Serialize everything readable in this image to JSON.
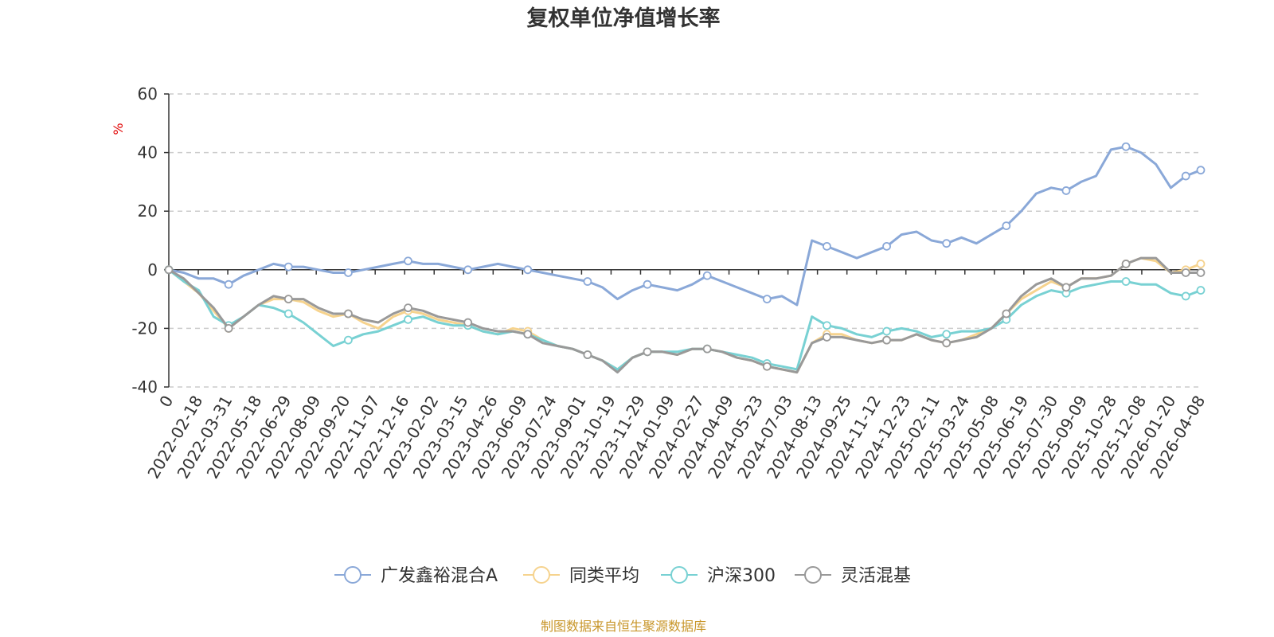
{
  "chart_data": {
    "type": "line",
    "title": "复权单位净值增长率",
    "ylabel": "%",
    "ylim": [
      -40,
      60
    ],
    "yticks": [
      60,
      40,
      20,
      0,
      -20,
      -40
    ],
    "grid": true,
    "legend_position": "bottom",
    "source": "制图数据来自恒生聚源数据库",
    "x_labels": [
      "0",
      "2022-02-18",
      "2022-03-31",
      "2022-05-18",
      "2022-06-29",
      "2022-08-09",
      "2022-09-20",
      "2022-11-07",
      "2022-12-16",
      "2023-02-02",
      "2023-03-15",
      "2023-04-26",
      "2023-06-09",
      "2023-07-24",
      "2023-09-01",
      "2023-10-19",
      "2023-11-29",
      "2024-01-09",
      "2024-02-27",
      "2024-04-09",
      "2024-05-23",
      "2024-07-03",
      "2024-08-13",
      "2024-09-25",
      "2024-11-12",
      "2024-12-23",
      "2025-02-11",
      "2025-03-24",
      "2025-05-08",
      "2025-06-19",
      "2025-07-30",
      "2025-09-09",
      "2025-10-28",
      "2025-12-08",
      "2026-01-20",
      "2026-04-08"
    ],
    "series": [
      {
        "name": "广发鑫裕混合A",
        "color": "#8aa8d8",
        "values": [
          0,
          -1,
          -3,
          -3,
          -5,
          -2,
          0,
          2,
          1,
          1,
          0,
          -1,
          -1,
          0,
          1,
          2,
          3,
          2,
          2,
          1,
          0,
          1,
          2,
          1,
          0,
          -1,
          -2,
          -3,
          -4,
          -6,
          -10,
          -7,
          -5,
          -6,
          -7,
          -5,
          -2,
          -4,
          -6,
          -8,
          -10,
          -9,
          -12,
          10,
          8,
          6,
          4,
          6,
          8,
          12,
          13,
          10,
          9,
          11,
          9,
          12,
          15,
          20,
          26,
          28,
          27,
          30,
          32,
          41,
          42,
          40,
          36,
          28,
          32,
          34
        ]
      },
      {
        "name": "同类平均",
        "color": "#f6d38e",
        "values": [
          0,
          -4,
          -8,
          -14,
          -20,
          -16,
          -12,
          -10,
          -10,
          -11,
          -14,
          -16,
          -15,
          -18,
          -20,
          -16,
          -14,
          -15,
          -17,
          -18,
          -19,
          -21,
          -22,
          -20,
          -21,
          -24,
          -26,
          -27,
          -29,
          -31,
          -34,
          -30,
          -28,
          -28,
          -29,
          -27,
          -27,
          -28,
          -30,
          -31,
          -33,
          -34,
          -35,
          -25,
          -22,
          -22,
          -24,
          -25,
          -24,
          -24,
          -22,
          -24,
          -25,
          -24,
          -22,
          -20,
          -15,
          -10,
          -7,
          -4,
          -6,
          -3,
          -3,
          -2,
          2,
          4,
          3,
          -1,
          0,
          2
        ]
      },
      {
        "name": "沪深300",
        "color": "#78d1d3",
        "values": [
          0,
          -4,
          -7,
          -16,
          -19,
          -16,
          -12,
          -13,
          -15,
          -18,
          -22,
          -26,
          -24,
          -22,
          -21,
          -19,
          -17,
          -16,
          -18,
          -19,
          -19,
          -21,
          -22,
          -21,
          -22,
          -24,
          -26,
          -27,
          -29,
          -31,
          -34,
          -30,
          -28,
          -28,
          -28,
          -27,
          -27,
          -28,
          -29,
          -30,
          -32,
          -33,
          -34,
          -16,
          -19,
          -20,
          -22,
          -23,
          -21,
          -20,
          -21,
          -23,
          -22,
          -21,
          -21,
          -20,
          -17,
          -12,
          -9,
          -7,
          -8,
          -6,
          -5,
          -4,
          -4,
          -5,
          -5,
          -8,
          -9,
          -7
        ]
      },
      {
        "name": "灵活混基",
        "color": "#999999",
        "values": [
          0,
          -3,
          -8,
          -13,
          -20,
          -16,
          -12,
          -9,
          -10,
          -10,
          -13,
          -15,
          -15,
          -17,
          -18,
          -15,
          -13,
          -14,
          -16,
          -17,
          -18,
          -20,
          -21,
          -21,
          -22,
          -25,
          -26,
          -27,
          -29,
          -31,
          -35,
          -30,
          -28,
          -28,
          -29,
          -27,
          -27,
          -28,
          -30,
          -31,
          -33,
          -34,
          -35,
          -25,
          -23,
          -23,
          -24,
          -25,
          -24,
          -24,
          -22,
          -24,
          -25,
          -24,
          -23,
          -20,
          -15,
          -9,
          -5,
          -3,
          -6,
          -3,
          -3,
          -2,
          2,
          4,
          4,
          -1,
          -1,
          -1
        ]
      }
    ]
  }
}
